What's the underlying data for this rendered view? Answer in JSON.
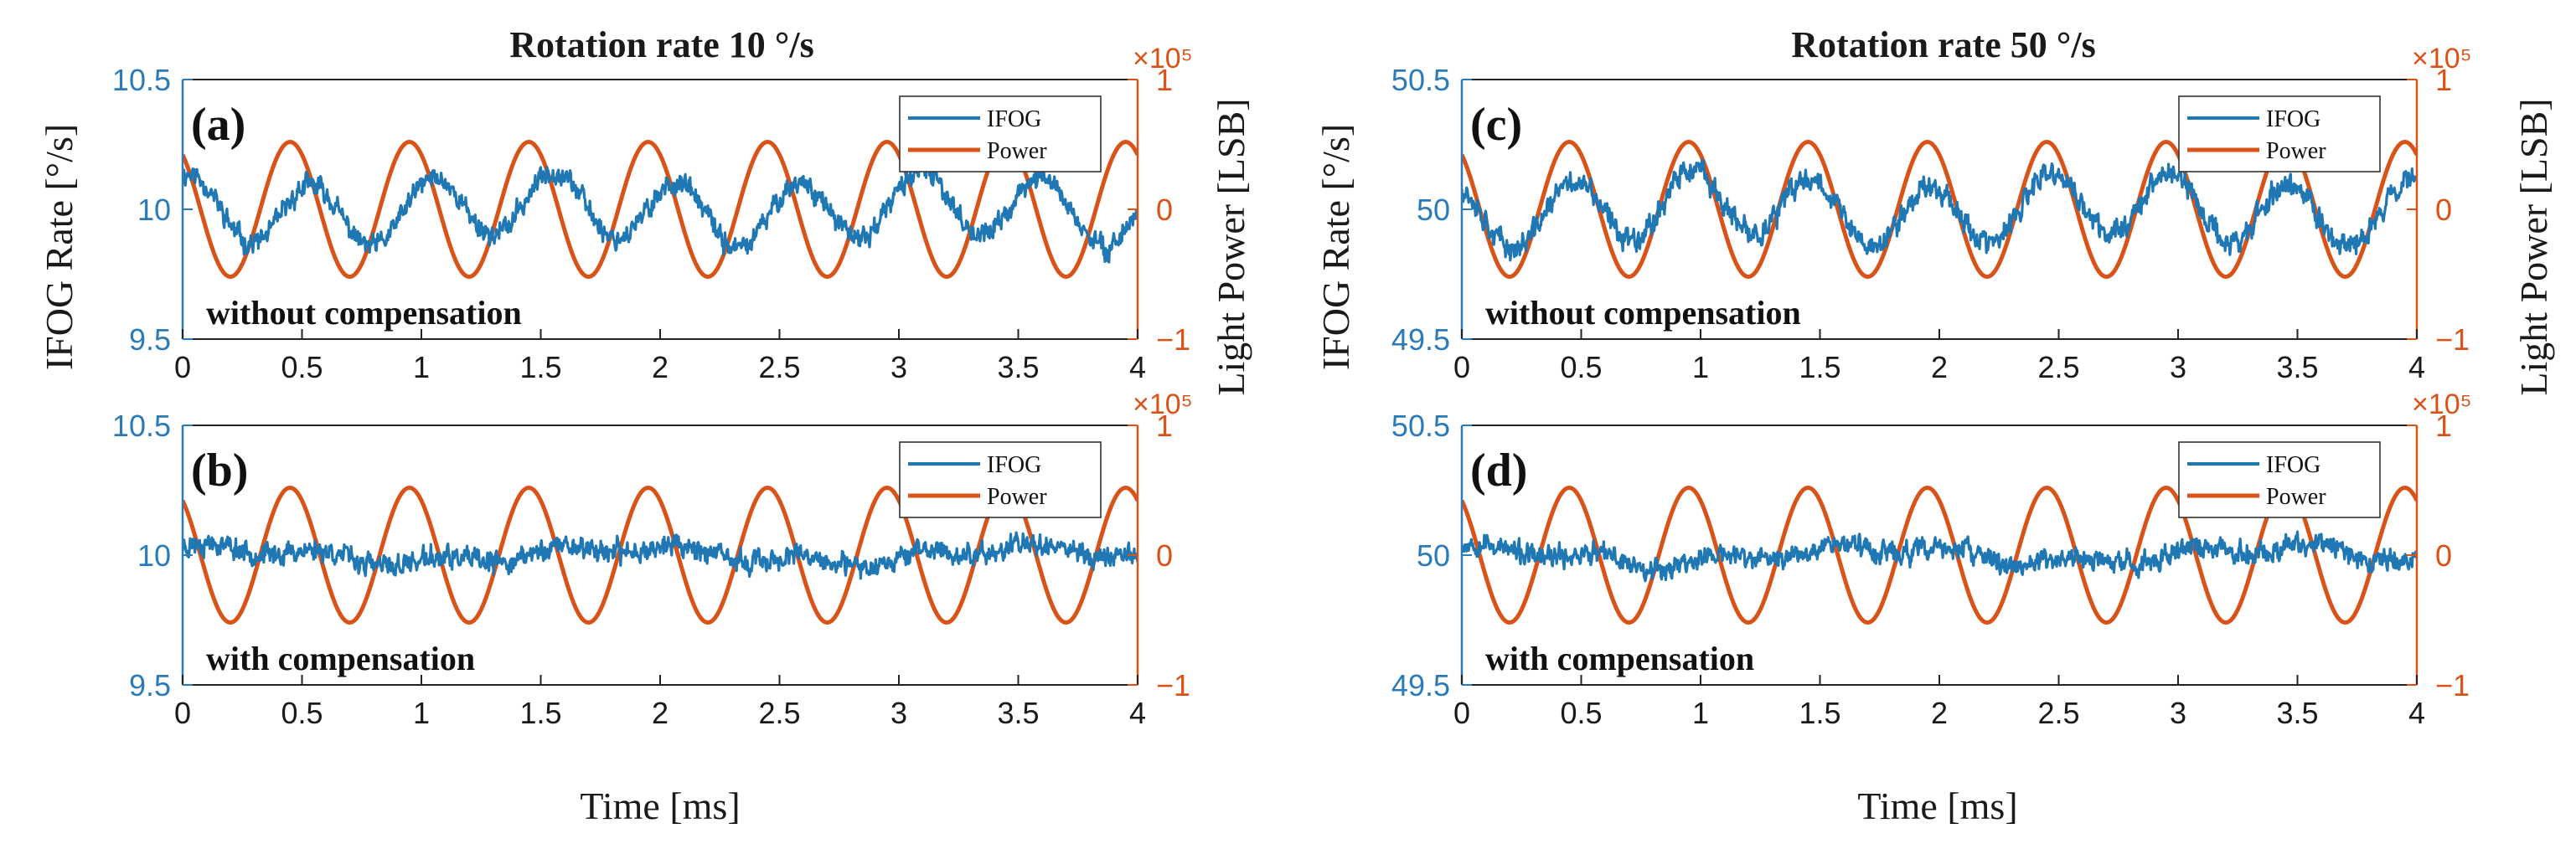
{
  "colors": {
    "ifog": "#1f77b4",
    "power": "#d95319",
    "left_axis": "#2b7bb9",
    "right_axis": "#d95319",
    "frame": "#222222",
    "text": "#1a1a1a"
  },
  "figure": {
    "left_title": "Rotation rate 10 °/s",
    "right_title": "Rotation rate 50 °/s",
    "ylabel_left": "IFOG Rate [°/s]",
    "ylabel_right": "Light Power [LSB]",
    "xlabel": "Time [ms]"
  },
  "chart_data": [
    {
      "id": "a",
      "type": "line",
      "panel_label": "(a)",
      "annotation": "without compensation",
      "xlabel": "Time [ms]",
      "ylabel": "IFOG Rate [°/s]",
      "ylabel_right": "Light Power [LSB]",
      "xlim": [
        0,
        4
      ],
      "ylim": [
        9.5,
        10.5
      ],
      "y2lim": [
        -1,
        1
      ],
      "y2_exponent": "×10⁵",
      "xticks": [
        "0",
        "0.5",
        "1",
        "1.5",
        "2",
        "2.5",
        "3",
        "3.5",
        "4"
      ],
      "yticks": [
        "9.5",
        "10",
        "10.5"
      ],
      "y2ticks": [
        "−1",
        "0",
        "1"
      ],
      "legend": [
        "IFOG",
        "Power"
      ],
      "legend_position": "top-right",
      "series": [
        {
          "name": "IFOG",
          "axis": "left",
          "center": 10.0,
          "osc_amp": 0.12,
          "noise": 0.045,
          "osc_period_ms": 0.51,
          "phase": 1.2,
          "seed": 11
        },
        {
          "name": "Power",
          "axis": "right",
          "amplitude": 0.52,
          "period_ms": 0.5,
          "peak_at_ms": 0.45,
          "offset": 0.0
        }
      ]
    },
    {
      "id": "b",
      "type": "line",
      "panel_label": "(b)",
      "annotation": "with compensation",
      "xlabel": "Time [ms]",
      "ylabel": "IFOG Rate [°/s]",
      "ylabel_right": "Light Power [LSB]",
      "xlim": [
        0,
        4
      ],
      "ylim": [
        9.5,
        10.5
      ],
      "y2lim": [
        -1,
        1
      ],
      "y2_exponent": "×10⁵",
      "xticks": [
        "0",
        "0.5",
        "1",
        "1.5",
        "2",
        "2.5",
        "3",
        "3.5",
        "4"
      ],
      "yticks": [
        "9.5",
        "10",
        "10.5"
      ],
      "y2ticks": [
        "−1",
        "0",
        "1"
      ],
      "legend": [
        "IFOG",
        "Power"
      ],
      "legend_position": "top-right",
      "series": [
        {
          "name": "IFOG",
          "axis": "left",
          "center": 10.0,
          "osc_amp": 0.02,
          "noise": 0.045,
          "osc_period_ms": 0.5,
          "phase": 0.5,
          "seed": 23
        },
        {
          "name": "Power",
          "axis": "right",
          "amplitude": 0.52,
          "period_ms": 0.5,
          "peak_at_ms": 0.45,
          "offset": 0.0
        }
      ]
    },
    {
      "id": "c",
      "type": "line",
      "panel_label": "(c)",
      "annotation": "without compensation",
      "xlabel": "Time [ms]",
      "ylabel": "IFOG Rate [°/s]",
      "ylabel_right": "Light Power [LSB]",
      "xlim": [
        0,
        4
      ],
      "ylim": [
        49.5,
        50.5
      ],
      "y2lim": [
        -1,
        1
      ],
      "y2_exponent": "×10⁵",
      "xticks": [
        "0",
        "0.5",
        "1",
        "1.5",
        "2",
        "2.5",
        "3",
        "3.5",
        "4"
      ],
      "yticks": [
        "49.5",
        "50",
        "50.5"
      ],
      "y2ticks": [
        "−1",
        "0",
        "1"
      ],
      "legend": [
        "IFOG",
        "Power"
      ],
      "legend_position": "top-right",
      "series": [
        {
          "name": "IFOG",
          "axis": "left",
          "center": 50.0,
          "osc_amp": 0.12,
          "noise": 0.05,
          "osc_period_ms": 0.5,
          "phase": 2.0,
          "seed": 37
        },
        {
          "name": "Power",
          "axis": "right",
          "amplitude": 0.52,
          "period_ms": 0.5,
          "peak_at_ms": 0.45,
          "offset": 0.0
        }
      ]
    },
    {
      "id": "d",
      "type": "line",
      "panel_label": "(d)",
      "annotation": "with compensation",
      "xlabel": "Time [ms]",
      "ylabel": "IFOG Rate [°/s]",
      "ylabel_right": "Light Power [LSB]",
      "xlim": [
        0,
        4
      ],
      "ylim": [
        49.5,
        50.5
      ],
      "y2lim": [
        -1,
        1
      ],
      "y2_exponent": "×10⁵",
      "xticks": [
        "0",
        "0.5",
        "1",
        "1.5",
        "2",
        "2.5",
        "3",
        "3.5",
        "4"
      ],
      "yticks": [
        "49.5",
        "50",
        "50.5"
      ],
      "y2ticks": [
        "−1",
        "0",
        "1"
      ],
      "legend": [
        "IFOG",
        "Power"
      ],
      "legend_position": "top-right",
      "series": [
        {
          "name": "IFOG",
          "axis": "left",
          "center": 50.0,
          "osc_amp": 0.02,
          "noise": 0.045,
          "osc_period_ms": 0.5,
          "phase": 0.8,
          "seed": 53
        },
        {
          "name": "Power",
          "axis": "right",
          "amplitude": 0.52,
          "period_ms": 0.5,
          "peak_at_ms": 0.45,
          "offset": 0.0
        }
      ]
    }
  ]
}
